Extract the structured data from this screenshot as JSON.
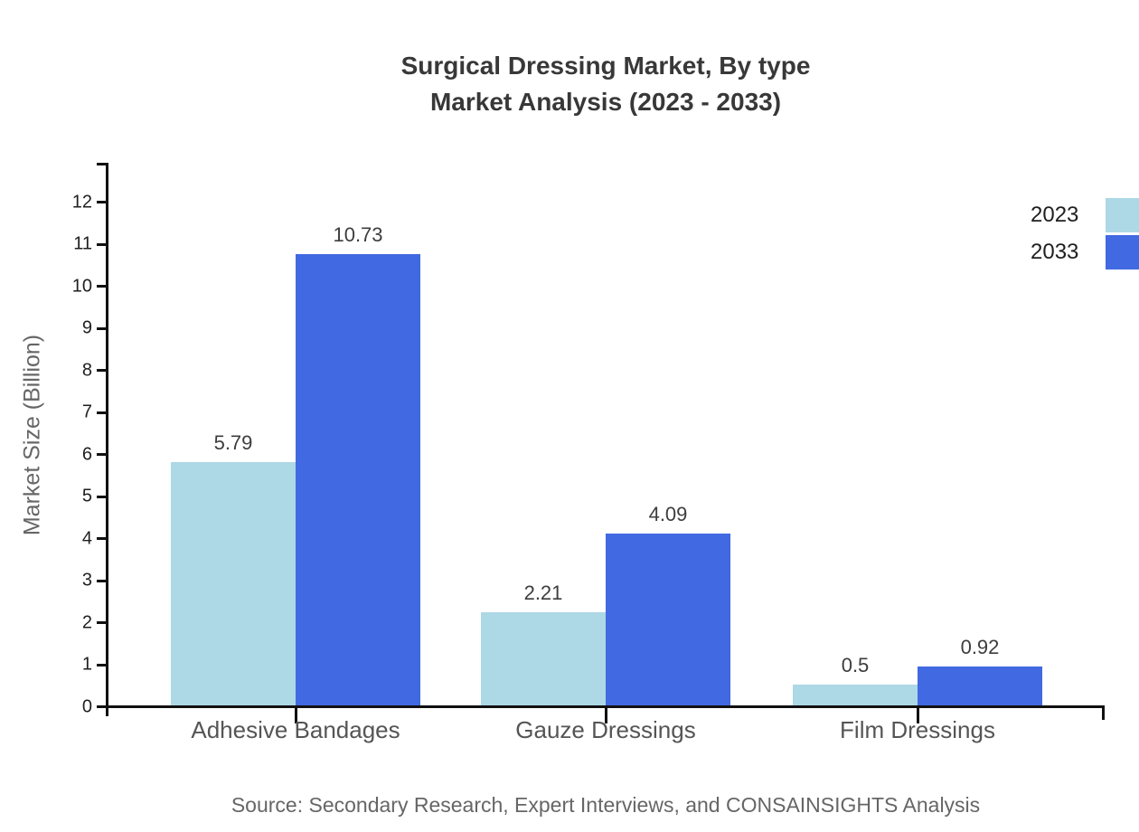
{
  "page": {
    "title_line1": "Surgical Dressing Market, By type",
    "title_line2": "Market Analysis (2023 - 2033)",
    "source": "Source: Secondary Research, Expert Interviews, and CONSAINSIGHTS Analysis"
  },
  "chart_data": {
    "type": "bar",
    "title": "Surgical Dressing Market, By type Market Analysis (2023 - 2033)",
    "categories": [
      "Adhesive Bandages",
      "Gauze Dressings",
      "Film Dressings"
    ],
    "series": [
      {
        "name": "2023",
        "color": "#ADD8E6",
        "values": [
          5.79,
          2.21,
          0.5
        ]
      },
      {
        "name": "2033",
        "color": "#4169E1",
        "values": [
          10.73,
          4.09,
          0.92
        ]
      }
    ],
    "xlabel": "",
    "ylabel": "Market Size (Billion)",
    "ylim": [
      0,
      12
    ],
    "ytick_step": 1,
    "grid": false,
    "legend_position": "top-right",
    "bar_value_labels": true
  }
}
